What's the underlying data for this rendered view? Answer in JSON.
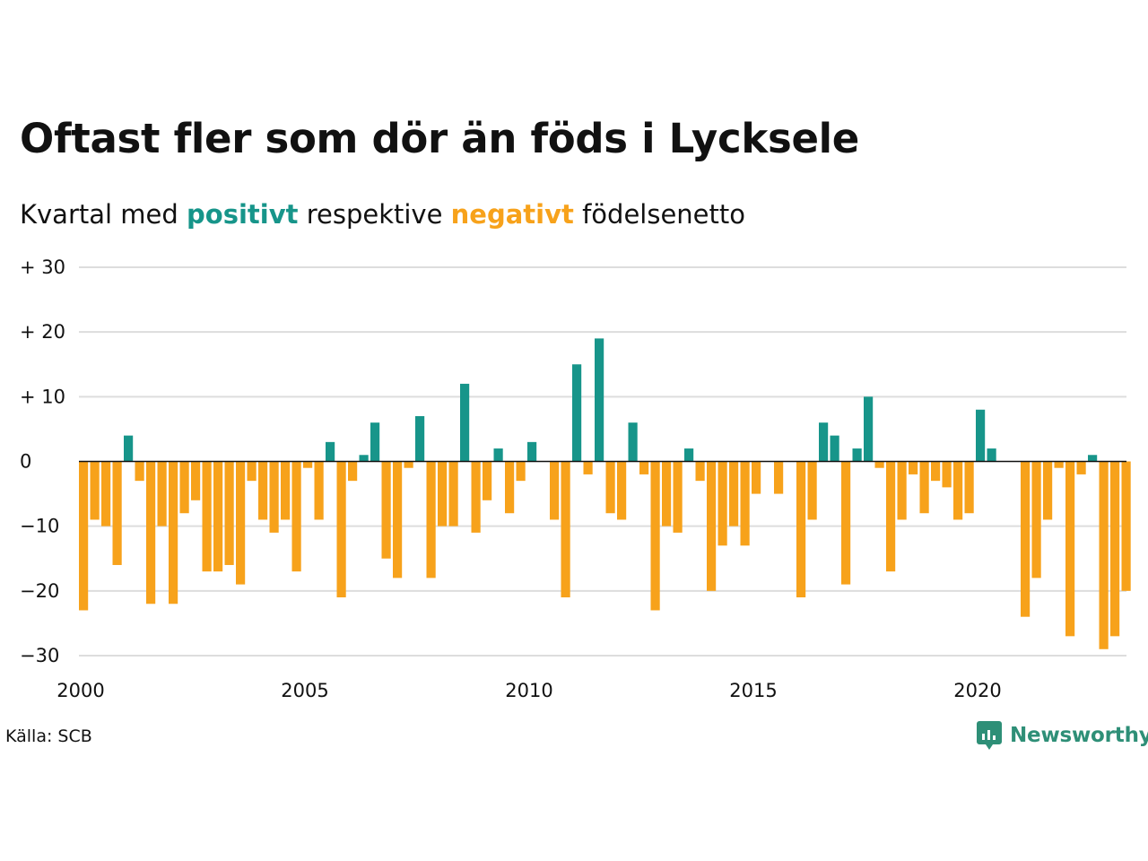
{
  "title": "Oftast fler som dör än föds i Lycksele",
  "subtitle": {
    "prefix": "Kvartal med",
    "positive": "positivt",
    "middle": "respektive",
    "negative": "negativt",
    "suffix": "födelsenetto"
  },
  "colors": {
    "positive": "#17958a",
    "negative": "#f7a21b",
    "grid": "#dddddd",
    "zero": "#111111"
  },
  "source": "Källa: SCB",
  "brand": "Newsworthy",
  "chart_data": {
    "type": "bar",
    "x_unit": "year-quarter",
    "start": "2000 Q1",
    "ylim": [
      -30,
      30
    ],
    "yticks": [
      -30,
      -20,
      -10,
      0,
      10,
      20,
      30
    ],
    "ytick_labels": [
      "−30",
      "−20",
      "−10",
      "0",
      "+ 10",
      "+ 20",
      "+ 30"
    ],
    "xticks": [
      2000,
      2005,
      2010,
      2015,
      2020
    ],
    "xtick_labels": [
      "2000",
      "2005",
      "2010",
      "2015",
      "2020"
    ],
    "grid": true,
    "values": [
      -23,
      -9,
      -10,
      -16,
      4,
      -3,
      -22,
      -10,
      -22,
      -8,
      -6,
      -17,
      -17,
      -16,
      -19,
      -3,
      -9,
      -11,
      -9,
      -17,
      -1,
      -9,
      3,
      -21,
      -3,
      1,
      6,
      -15,
      -18,
      -1,
      7,
      -18,
      -10,
      -10,
      12,
      -11,
      -6,
      2,
      -8,
      -3,
      3,
      0,
      -9,
      -21,
      15,
      -2,
      19,
      -8,
      -9,
      6,
      -2,
      -23,
      -10,
      -11,
      2,
      -3,
      -20,
      -13,
      -10,
      -13,
      -5,
      0,
      -5,
      0,
      -21,
      -9,
      6,
      4,
      -19,
      2,
      10,
      -1,
      -17,
      -9,
      -2,
      -8,
      -3,
      -4,
      -9,
      -8,
      8,
      2,
      0,
      0,
      -24,
      -18,
      -9,
      -1,
      -27,
      -2,
      1,
      -29,
      -27,
      -20
    ]
  }
}
